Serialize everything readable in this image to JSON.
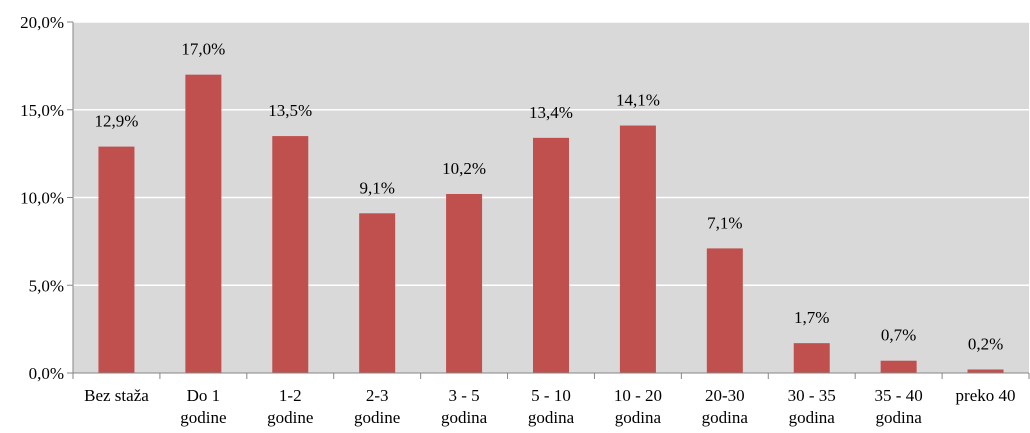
{
  "chart_data": {
    "type": "bar",
    "categories": [
      [
        "Bez staža"
      ],
      [
        "Do 1",
        "godine"
      ],
      [
        "1-2",
        "godine"
      ],
      [
        "2-3",
        "godine"
      ],
      [
        "3 - 5",
        "godina"
      ],
      [
        "5 - 10",
        "godina"
      ],
      [
        "10 - 20",
        "godina"
      ],
      [
        "20-30",
        "godina"
      ],
      [
        "30 - 35",
        "godina"
      ],
      [
        "35 - 40",
        "godina"
      ],
      [
        "preko 40"
      ]
    ],
    "values": [
      12.9,
      17.0,
      13.5,
      9.1,
      10.2,
      13.4,
      14.1,
      7.1,
      1.7,
      0.7,
      0.2
    ],
    "data_labels": [
      "12,9%",
      "17,0%",
      "13,5%",
      "9,1%",
      "10,2%",
      "13,4%",
      "14,1%",
      "7,1%",
      "1,7%",
      "0,7%",
      "0,2%"
    ],
    "y_ticks": [
      0,
      5,
      10,
      15,
      20
    ],
    "y_tick_labels": [
      "0,0%",
      "5,0%",
      "10,0%",
      "15,0%",
      "20,0%"
    ],
    "ylim": [
      0,
      20
    ],
    "grid": true,
    "legend": "none",
    "title": "",
    "xlabel": "",
    "ylabel": "",
    "colors": {
      "bar": "#c0504d",
      "plot_background": "#d9d9d9",
      "gridline": "#ffffff",
      "axis": "#868686"
    }
  }
}
